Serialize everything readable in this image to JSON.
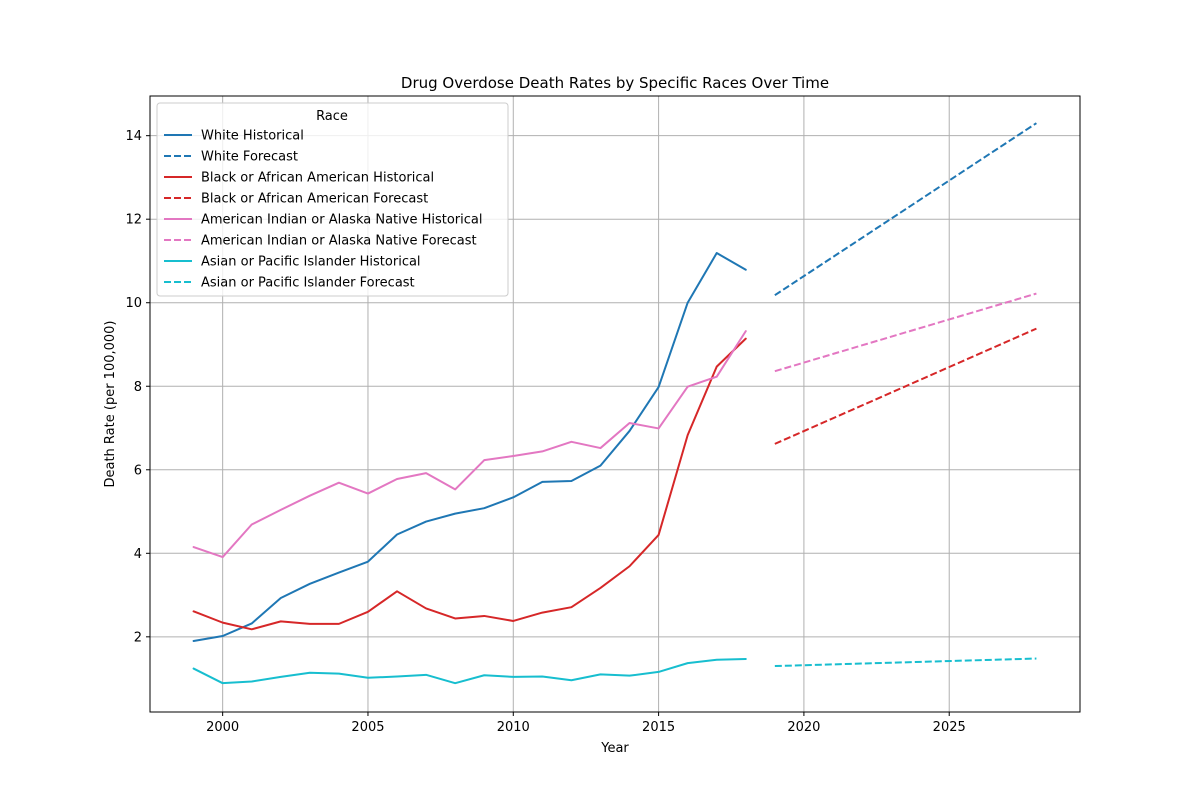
{
  "chart_data": {
    "type": "line",
    "title": "Drug Overdose Death Rates by Specific Races Over Time",
    "xlabel": "Year",
    "ylabel": "Death Rate (per 100,000)",
    "xlim": [
      1997.5,
      2029.5
    ],
    "ylim": [
      0.2,
      14.95
    ],
    "x_ticks": [
      2000,
      2005,
      2010,
      2015,
      2020,
      2025
    ],
    "y_ticks": [
      2,
      4,
      6,
      8,
      10,
      12,
      14
    ],
    "grid": true,
    "legend": {
      "title": "Race",
      "placement": "top-left"
    },
    "series": [
      {
        "name": "White Historical",
        "color": "#1f77b4",
        "style": "solid",
        "x": [
          1999,
          2000,
          2001,
          2002,
          2003,
          2004,
          2005,
          2006,
          2007,
          2008,
          2009,
          2010,
          2011,
          2012,
          2013,
          2014,
          2015,
          2016,
          2017,
          2018
        ],
        "y": [
          1.9,
          2.02,
          2.32,
          2.93,
          3.27,
          3.54,
          3.8,
          4.45,
          4.76,
          4.95,
          5.08,
          5.34,
          5.71,
          5.73,
          6.1,
          6.93,
          7.98,
          10.0,
          11.19,
          10.79
        ]
      },
      {
        "name": "White Forecast",
        "color": "#1f77b4",
        "style": "dashed",
        "x": [
          2019,
          2028
        ],
        "y": [
          10.18,
          14.3
        ]
      },
      {
        "name": "Black or African American Historical",
        "color": "#d62728",
        "style": "solid",
        "x": [
          1999,
          2000,
          2001,
          2002,
          2003,
          2004,
          2005,
          2006,
          2007,
          2008,
          2009,
          2010,
          2011,
          2012,
          2013,
          2014,
          2015,
          2016,
          2017,
          2018
        ],
        "y": [
          2.61,
          2.34,
          2.18,
          2.37,
          2.31,
          2.31,
          2.6,
          3.09,
          2.68,
          2.44,
          2.5,
          2.38,
          2.58,
          2.71,
          3.17,
          3.69,
          4.44,
          6.83,
          8.47,
          9.14
        ]
      },
      {
        "name": "Black or African American Forecast",
        "color": "#d62728",
        "style": "dashed",
        "x": [
          2019,
          2028
        ],
        "y": [
          6.62,
          9.38
        ]
      },
      {
        "name": "American Indian or Alaska Native Historical",
        "color": "#e377c2",
        "style": "solid",
        "x": [
          1999,
          2000,
          2001,
          2002,
          2003,
          2004,
          2005,
          2006,
          2007,
          2008,
          2009,
          2010,
          2011,
          2012,
          2013,
          2014,
          2015,
          2016,
          2017,
          2018
        ],
        "y": [
          4.15,
          3.91,
          4.69,
          5.04,
          5.38,
          5.69,
          5.43,
          5.78,
          5.92,
          5.53,
          6.23,
          6.33,
          6.44,
          6.67,
          6.52,
          7.12,
          6.99,
          7.99,
          8.23,
          9.32
        ]
      },
      {
        "name": "American Indian or Alaska Native Forecast",
        "color": "#e377c2",
        "style": "dashed",
        "x": [
          2019,
          2028
        ],
        "y": [
          8.36,
          10.22
        ]
      },
      {
        "name": "Asian or Pacific Islander Historical",
        "color": "#17becf",
        "style": "solid",
        "x": [
          1999,
          2000,
          2001,
          2002,
          2003,
          2004,
          2005,
          2006,
          2007,
          2008,
          2009,
          2010,
          2011,
          2012,
          2013,
          2014,
          2015,
          2016,
          2017,
          2018
        ],
        "y": [
          1.24,
          0.89,
          0.93,
          1.04,
          1.14,
          1.12,
          1.02,
          1.05,
          1.09,
          0.89,
          1.08,
          1.04,
          1.05,
          0.96,
          1.1,
          1.07,
          1.16,
          1.37,
          1.45,
          1.47
        ]
      },
      {
        "name": "Asian or Pacific Islander Forecast",
        "color": "#17becf",
        "style": "dashed",
        "x": [
          2019,
          2028
        ],
        "y": [
          1.3,
          1.48
        ]
      }
    ]
  }
}
